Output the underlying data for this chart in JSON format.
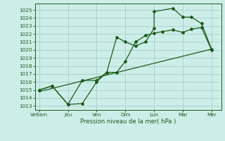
{
  "xlabel": "Pression niveau de la mer( hPa )",
  "background_color": "#cceee8",
  "grid_color": "#aacccc",
  "line_color": "#1a5c1a",
  "yticks": [
    1013,
    1014,
    1015,
    1016,
    1017,
    1018,
    1019,
    1020,
    1021,
    1022,
    1023,
    1024,
    1025
  ],
  "ylim": [
    1012.5,
    1025.8
  ],
  "xtick_labels": [
    "Ve6am",
    "Jeu",
    "Ven",
    "Dim",
    "Lun",
    "Mar",
    "Mer"
  ],
  "xtick_positions": [
    0,
    1,
    2,
    3,
    4,
    5,
    6
  ],
  "xlim": [
    -0.15,
    6.35
  ],
  "line1_x": [
    0,
    0.45,
    1,
    1.5,
    2,
    2.35,
    2.7,
    3,
    3.35,
    3.7,
    4,
    4.3,
    4.65,
    5,
    5.3,
    5.65,
    6
  ],
  "line1_y": [
    1015.0,
    1015.5,
    1013.2,
    1013.3,
    1016.0,
    1017.2,
    1017.2,
    1018.6,
    1021.0,
    1021.8,
    1022.1,
    1022.3,
    1022.5,
    1022.2,
    1022.6,
    1022.8,
    1020.0
  ],
  "line2_x": [
    0,
    0.45,
    1,
    1.5,
    2,
    2.35,
    2.7,
    3,
    3.35,
    3.7,
    4,
    4.0,
    4.65,
    5,
    5.3,
    5.65,
    6
  ],
  "line2_y": [
    1015.0,
    1015.5,
    1013.2,
    1016.2,
    1016.2,
    1017.2,
    1021.6,
    1021.0,
    1020.5,
    1021.0,
    1022.7,
    1024.8,
    1025.2,
    1024.1,
    1024.1,
    1023.3,
    1020.1
  ],
  "line3_x": [
    0,
    6
  ],
  "line3_y": [
    1014.8,
    1020.1
  ]
}
